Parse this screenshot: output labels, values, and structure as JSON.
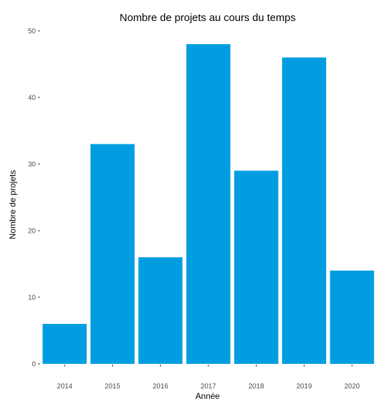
{
  "chart_data": {
    "type": "bar",
    "title": "Nombre de projets au cours du temps",
    "xlabel": "Année",
    "ylabel": "Nombre de projets",
    "categories": [
      "2014",
      "2015",
      "2016",
      "2017",
      "2018",
      "2019",
      "2020"
    ],
    "values": [
      6,
      33,
      16,
      48,
      29,
      46,
      14
    ],
    "ylim": [
      0,
      50
    ],
    "yticks": [
      0,
      10,
      20,
      30,
      40,
      50
    ],
    "grid": false,
    "legend": "none",
    "bar_color": "#009ee0"
  }
}
